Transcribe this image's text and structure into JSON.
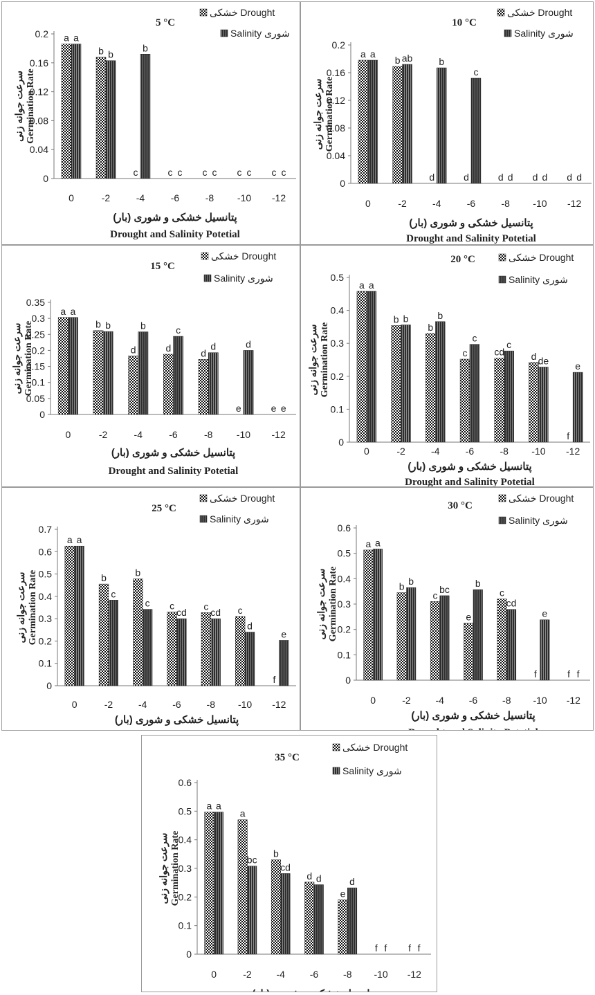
{
  "figure": {
    "legend_drought": "خشکی Drought",
    "legend_salinity": "Salinity شوری",
    "ylabel_fa": "سرعت جوانه زنی",
    "ylabel_en": "Germination Rate",
    "xlabel_fa": "پتانسیل خشکی و شوری (بار)",
    "xlabel_en": "Drought and Salinity Potetial",
    "colors": {
      "drought": "#1a1a1a",
      "salinity": "#3c3c3c",
      "axis": "#777777",
      "text": "#222222"
    }
  },
  "chart_data": [
    {
      "type": "bar",
      "title": "5 °C",
      "categories": [
        "0",
        "-2",
        "-4",
        "-6",
        "-8",
        "-10",
        "-12"
      ],
      "yticks": [
        "0",
        "0.04",
        "0.08",
        "0.12",
        "0.16",
        "0.2"
      ],
      "ylim": [
        0,
        0.2
      ],
      "series": [
        {
          "name": "Drought",
          "values": [
            0.186,
            0.168,
            0,
            0,
            0,
            0,
            0
          ],
          "labels": [
            "a",
            "b",
            "c",
            "c",
            "c",
            "c",
            "c"
          ]
        },
        {
          "name": "Salinity",
          "values": [
            0.186,
            0.163,
            0.172,
            0,
            0,
            0,
            0
          ],
          "labels": [
            "a",
            "b",
            "b",
            "c",
            "c",
            "c",
            "c"
          ]
        }
      ],
      "legend": "top-right"
    },
    {
      "type": "bar",
      "title": "10 °C",
      "categories": [
        "0",
        "-2",
        "-4",
        "-6",
        "-8",
        "-10",
        "-12"
      ],
      "yticks": [
        "0",
        "0.04",
        "0.08",
        "0.12",
        "0.16",
        "0.2"
      ],
      "ylim": [
        0,
        0.2
      ],
      "series": [
        {
          "name": "Drought",
          "values": [
            0.178,
            0.169,
            0,
            0,
            0,
            0,
            0
          ],
          "labels": [
            "a",
            "b",
            "d",
            "d",
            "d",
            "d",
            "d"
          ]
        },
        {
          "name": "Salinity",
          "values": [
            0.178,
            0.172,
            0.167,
            0.152,
            0,
            0,
            0
          ],
          "labels": [
            "a",
            "ab",
            "b",
            "c",
            "d",
            "d",
            "d"
          ]
        }
      ],
      "legend": "top-right"
    },
    {
      "type": "bar",
      "title": "15 °C",
      "categories": [
        "0",
        "-2",
        "-4",
        "-6",
        "-8",
        "-10",
        "-12"
      ],
      "yticks": [
        "0",
        "0.05",
        "0.1",
        "0.15",
        "0.2",
        "0.25",
        "0.3",
        "0.35"
      ],
      "ylim": [
        0,
        0.35
      ],
      "series": [
        {
          "name": "Drought",
          "values": [
            0.303,
            0.262,
            0.183,
            0.188,
            0.172,
            0,
            0
          ],
          "labels": [
            "a",
            "b",
            "d",
            "d",
            "d",
            "e",
            "e"
          ]
        },
        {
          "name": "Salinity",
          "values": [
            0.303,
            0.259,
            0.258,
            0.244,
            0.193,
            0.2,
            0
          ],
          "labels": [
            "a",
            "b",
            "b",
            "c",
            "d",
            "d",
            "e"
          ]
        }
      ],
      "legend": "top-right"
    },
    {
      "type": "bar",
      "title": "20 °C",
      "categories": [
        "0",
        "-2",
        "-4",
        "-6",
        "-8",
        "-10",
        "-12"
      ],
      "yticks": [
        "0",
        "0.1",
        "0.2",
        "0.3",
        "0.4",
        "0.5"
      ],
      "ylim": [
        0,
        0.5
      ],
      "series": [
        {
          "name": "Drought",
          "values": [
            0.458,
            0.354,
            0.33,
            0.252,
            0.255,
            0.242,
            0
          ],
          "labels": [
            "a",
            "b",
            "b",
            "c",
            "cd",
            "d",
            "f"
          ]
        },
        {
          "name": "Salinity",
          "values": [
            0.458,
            0.356,
            0.366,
            0.297,
            0.277,
            0.228,
            0.212
          ],
          "labels": [
            "a",
            "b",
            "b",
            "c",
            "c",
            "de",
            "e"
          ]
        }
      ],
      "legend": "top-right"
    },
    {
      "type": "bar",
      "title": "25 °C",
      "categories": [
        "0",
        "-2",
        "-4",
        "-6",
        "-8",
        "-10",
        "-12"
      ],
      "yticks": [
        "0",
        "0.1",
        "0.2",
        "0.3",
        "0.4",
        "0.5",
        "0.6",
        "0.7"
      ],
      "ylim": [
        0,
        0.7
      ],
      "series": [
        {
          "name": "Drought",
          "values": [
            0.625,
            0.455,
            0.478,
            0.33,
            0.327,
            0.31,
            0
          ],
          "labels": [
            "a",
            "b",
            "b",
            "c",
            "c",
            "c",
            "f"
          ]
        },
        {
          "name": "Salinity",
          "values": [
            0.625,
            0.383,
            0.342,
            0.3,
            0.3,
            0.24,
            0.203
          ],
          "labels": [
            "a",
            "c",
            "c",
            "cd",
            "cd",
            "d",
            "e"
          ]
        }
      ],
      "legend": "top-right"
    },
    {
      "type": "bar",
      "title": "30 °C",
      "categories": [
        "0",
        "-2",
        "-4",
        "-6",
        "-8",
        "-10",
        "-12"
      ],
      "yticks": [
        "0",
        "0.1",
        "0.2",
        "0.3",
        "0.4",
        "0.5",
        "0.6"
      ],
      "ylim": [
        0,
        0.6
      ],
      "series": [
        {
          "name": "Drought",
          "values": [
            0.513,
            0.345,
            0.31,
            0.225,
            0.32,
            0,
            0
          ],
          "labels": [
            "a",
            "b",
            "c",
            "e",
            "c",
            "f",
            "f"
          ]
        },
        {
          "name": "Salinity",
          "values": [
            0.517,
            0.365,
            0.333,
            0.357,
            0.279,
            0.238,
            0
          ],
          "labels": [
            "a",
            "b",
            "bc",
            "b",
            "cd",
            "e",
            "f"
          ]
        }
      ],
      "legend": "top-right"
    },
    {
      "type": "bar",
      "title": "35 °C",
      "categories": [
        "0",
        "-2",
        "-4",
        "-6",
        "-8",
        "-10",
        "-12"
      ],
      "yticks": [
        "0",
        "0.1",
        "0.2",
        "0.3",
        "0.4",
        "0.5",
        "0.6"
      ],
      "ylim": [
        0,
        0.6
      ],
      "series": [
        {
          "name": "Drought",
          "values": [
            0.497,
            0.47,
            0.33,
            0.252,
            0.19,
            0,
            0
          ],
          "labels": [
            "a",
            "a",
            "b",
            "d",
            "e",
            "f",
            "f"
          ]
        },
        {
          "name": "Salinity",
          "values": [
            0.497,
            0.308,
            0.282,
            0.243,
            0.232,
            0,
            0
          ],
          "labels": [
            "a",
            "bc",
            "cd",
            "d",
            "d",
            "f",
            "f"
          ]
        }
      ],
      "legend": "top-right"
    }
  ]
}
